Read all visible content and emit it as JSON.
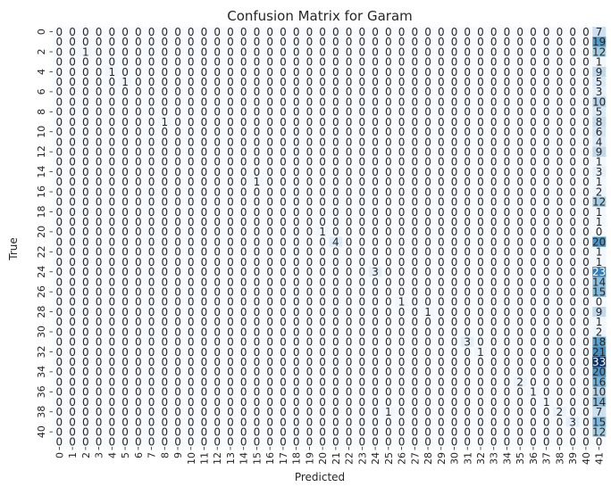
{
  "chart_data": {
    "type": "heatmap",
    "title": "Confusion Matrix for Garam",
    "xlabel": "Predicted",
    "ylabel": "True",
    "x_tick_labels": [
      "0",
      "1",
      "2",
      "3",
      "4",
      "5",
      "6",
      "7",
      "8",
      "9",
      "10",
      "11",
      "12",
      "13",
      "14",
      "15",
      "16",
      "17",
      "18",
      "19",
      "20",
      "21",
      "22",
      "23",
      "24",
      "25",
      "26",
      "27",
      "28",
      "29",
      "30",
      "31",
      "32",
      "33",
      "34",
      "35",
      "36",
      "37",
      "38",
      "39",
      "40",
      "41"
    ],
    "y_tick_labels": [
      "0",
      "2",
      "4",
      "6",
      "8",
      "10",
      "12",
      "14",
      "16",
      "18",
      "20",
      "22",
      "24",
      "26",
      "28",
      "30",
      "32",
      "34",
      "36",
      "38",
      "40"
    ],
    "colormap": "Blues",
    "colorbar": false,
    "size": 42,
    "nonzero_cells": [
      {
        "row": 0,
        "col": 41,
        "value": 7
      },
      {
        "row": 1,
        "col": 41,
        "value": 19
      },
      {
        "row": 2,
        "col": 2,
        "value": 1
      },
      {
        "row": 2,
        "col": 41,
        "value": 12
      },
      {
        "row": 3,
        "col": 41,
        "value": 1
      },
      {
        "row": 4,
        "col": 4,
        "value": 1
      },
      {
        "row": 4,
        "col": 41,
        "value": 9
      },
      {
        "row": 5,
        "col": 5,
        "value": 1
      },
      {
        "row": 5,
        "col": 41,
        "value": 5
      },
      {
        "row": 6,
        "col": 41,
        "value": 3
      },
      {
        "row": 7,
        "col": 41,
        "value": 10
      },
      {
        "row": 8,
        "col": 41,
        "value": 5
      },
      {
        "row": 9,
        "col": 8,
        "value": 1
      },
      {
        "row": 9,
        "col": 41,
        "value": 8
      },
      {
        "row": 10,
        "col": 41,
        "value": 6
      },
      {
        "row": 11,
        "col": 41,
        "value": 4
      },
      {
        "row": 12,
        "col": 41,
        "value": 9
      },
      {
        "row": 13,
        "col": 41,
        "value": 1
      },
      {
        "row": 14,
        "col": 41,
        "value": 3
      },
      {
        "row": 15,
        "col": 15,
        "value": 1
      },
      {
        "row": 15,
        "col": 41,
        "value": 1
      },
      {
        "row": 16,
        "col": 41,
        "value": 2
      },
      {
        "row": 17,
        "col": 41,
        "value": 12
      },
      {
        "row": 18,
        "col": 41,
        "value": 1
      },
      {
        "row": 19,
        "col": 41,
        "value": 1
      },
      {
        "row": 20,
        "col": 20,
        "value": 1
      },
      {
        "row": 21,
        "col": 21,
        "value": 4
      },
      {
        "row": 21,
        "col": 41,
        "value": 20
      },
      {
        "row": 22,
        "col": 41,
        "value": 1
      },
      {
        "row": 23,
        "col": 41,
        "value": 1
      },
      {
        "row": 24,
        "col": 24,
        "value": 3
      },
      {
        "row": 24,
        "col": 41,
        "value": 23
      },
      {
        "row": 25,
        "col": 41,
        "value": 14
      },
      {
        "row": 26,
        "col": 41,
        "value": 15
      },
      {
        "row": 27,
        "col": 26,
        "value": 1
      },
      {
        "row": 28,
        "col": 28,
        "value": 1
      },
      {
        "row": 28,
        "col": 41,
        "value": 9
      },
      {
        "row": 29,
        "col": 41,
        "value": 1
      },
      {
        "row": 30,
        "col": 41,
        "value": 2
      },
      {
        "row": 31,
        "col": 31,
        "value": 3
      },
      {
        "row": 31,
        "col": 41,
        "value": 18
      },
      {
        "row": 32,
        "col": 32,
        "value": 1
      },
      {
        "row": 32,
        "col": 41,
        "value": 21
      },
      {
        "row": 33,
        "col": 41,
        "value": 33
      },
      {
        "row": 34,
        "col": 41,
        "value": 20
      },
      {
        "row": 35,
        "col": 35,
        "value": 2
      },
      {
        "row": 35,
        "col": 41,
        "value": 16
      },
      {
        "row": 36,
        "col": 36,
        "value": 1
      },
      {
        "row": 36,
        "col": 41,
        "value": 10
      },
      {
        "row": 37,
        "col": 37,
        "value": 1
      },
      {
        "row": 37,
        "col": 41,
        "value": 14
      },
      {
        "row": 38,
        "col": 25,
        "value": 1
      },
      {
        "row": 38,
        "col": 38,
        "value": 2
      },
      {
        "row": 38,
        "col": 41,
        "value": 7
      },
      {
        "row": 39,
        "col": 39,
        "value": 3
      },
      {
        "row": 39,
        "col": 41,
        "value": 15
      },
      {
        "row": 40,
        "col": 41,
        "value": 12
      }
    ]
  }
}
